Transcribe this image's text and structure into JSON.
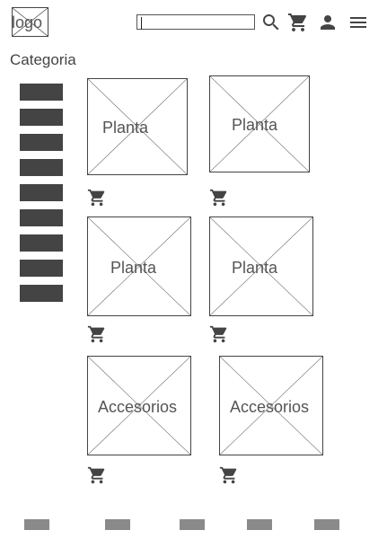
{
  "header": {
    "logo_label": "logo",
    "search": {
      "value": ""
    },
    "icons": {
      "search": "search-icon",
      "cart": "cart-icon",
      "account": "person-icon",
      "menu": "menu-icon"
    }
  },
  "sidebar": {
    "title": "Categoria",
    "items_count_visible": 9
  },
  "products": [
    {
      "label": "Planta"
    },
    {
      "label": "Planta"
    },
    {
      "label": "Planta"
    },
    {
      "label": "Planta"
    },
    {
      "label": "Accesorios"
    },
    {
      "label": "Accesorios"
    }
  ],
  "colors": {
    "ink": "#444444",
    "pagination": "#8a8a8a"
  }
}
